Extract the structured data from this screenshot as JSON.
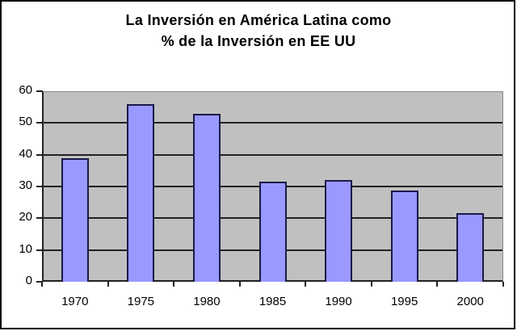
{
  "chart_data": {
    "type": "bar",
    "title": "La Inversión en América Latina como % de la Inversión en EE UU",
    "title_lines": [
      "La Inversión en América Latina como",
      "% de la Inversión en EE UU"
    ],
    "xlabel": "",
    "ylabel": "",
    "categories": [
      "1970",
      "1975",
      "1980",
      "1985",
      "1990",
      "1995",
      "2000"
    ],
    "values": [
      39,
      56,
      53,
      31.5,
      32,
      28.7,
      21.5
    ],
    "ylim": [
      0,
      60
    ],
    "yticks": [
      "0",
      "10",
      "20",
      "30",
      "40",
      "50",
      "60"
    ],
    "grid": true,
    "legend": null,
    "colors": {
      "bar": "#9999ff",
      "bar_border": "#1a1a4a",
      "plot_bg": "#c0c0c0",
      "gridline": "#222222"
    }
  }
}
